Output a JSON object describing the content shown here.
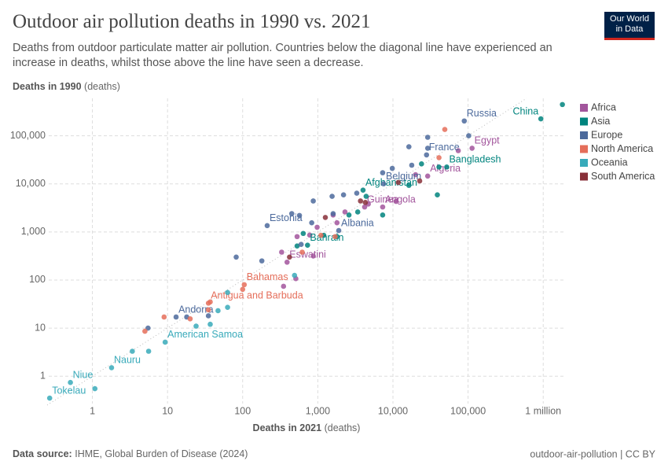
{
  "chart_data": {
    "type": "scatter",
    "title": "Outdoor air pollution deaths in 1990 vs. 2021",
    "subtitle": "Deaths from outdoor particulate matter air pollution. Countries below the diagonal line have experienced an increase in deaths, whilst those above the line have seen a decrease.",
    "logo": [
      "Our World",
      "in Data"
    ],
    "ylabel": {
      "text": "Deaths in 1990",
      "unit": "(deaths)"
    },
    "xlabel": {
      "text": "Deaths in 2021",
      "unit": "(deaths)"
    },
    "source_label": "Data source:",
    "source": "IHME, Global Burden of Disease (2024)",
    "footer_right": "outdoor-air-pollution | CC BY",
    "xscale": "log",
    "yscale": "log",
    "grid": true,
    "legend": "right",
    "xlim": [
      0.25,
      2000000
    ],
    "ylim": [
      0.25,
      600000
    ],
    "xticks": [
      1,
      10,
      100,
      {
        "value": 1000,
        "label": "1,000"
      },
      {
        "value": 10000,
        "label": "10,000"
      },
      {
        "value": 100000,
        "label": "100,000"
      },
      {
        "value": 1000000,
        "label": "1 million"
      }
    ],
    "yticks": [
      1,
      10,
      100,
      {
        "value": 1000,
        "label": "1,000"
      },
      {
        "value": 10000,
        "label": "10,000"
      },
      {
        "value": 100000,
        "label": "100,000"
      }
    ],
    "series": [
      {
        "name": "Africa",
        "color": "#a2559c",
        "x": [
          113000,
          29000,
          7300,
          4200,
          390,
          74000,
          20000,
          11000,
          4700,
          2300,
          1600,
          980,
          780,
          530,
          330,
          510,
          350,
          870,
          1800
        ],
        "y": [
          55000,
          14500,
          3300,
          3300,
          235,
          49000,
          15500,
          4300,
          3800,
          2600,
          2250,
          1250,
          860,
          800,
          380,
          107,
          74,
          316,
          1550
        ],
        "labels": [
          "Egypt",
          "Algeria",
          "Angola",
          "Guinea",
          "Eswatini",
          null,
          null,
          null,
          null,
          null,
          null,
          null,
          null,
          null,
          null,
          null,
          null,
          null,
          null
        ]
      },
      {
        "name": "Asia",
        "color": "#00847e",
        "x": [
          930000,
          52000,
          4000,
          730,
          1800000,
          41000,
          39000,
          16300,
          7300,
          3400,
          2600,
          1800,
          1200,
          640,
          530,
          4400,
          24000
        ],
        "y": [
          225000,
          22400,
          7400,
          530,
          446000,
          22400,
          5900,
          9300,
          2250,
          2600,
          2250,
          800,
          850,
          930,
          510,
          5500,
          26000
        ],
        "labels": [
          "China",
          "Bangladesh",
          "Afghanistan",
          "Bahrain",
          null,
          null,
          null,
          null,
          null,
          null,
          null,
          null,
          null,
          null,
          null,
          null,
          null
        ]
      },
      {
        "name": "Europe",
        "color": "#4c6a9c",
        "x": [
          89000,
          28000,
          7500,
          212,
          1900,
          13,
          102000,
          29000,
          29000,
          16300,
          17800,
          9800,
          7300,
          3300,
          2200,
          1550,
          870,
          1600,
          450,
          570,
          830,
          82,
          180,
          600,
          5.5,
          18,
          35
        ],
        "y": [
          203000,
          40000,
          10000,
          1350,
          1070,
          17,
          100000,
          93000,
          55000,
          59000,
          24400,
          21000,
          17000,
          6400,
          5900,
          5500,
          4400,
          2400,
          2400,
          2200,
          1550,
          300,
          250,
          550,
          10,
          17,
          18
        ],
        "labels": [
          "Russia",
          "France",
          "Belgium",
          "Estonia",
          "Albania",
          "Andorra",
          null,
          null,
          null,
          null,
          null,
          null,
          null,
          null,
          null,
          null,
          null,
          null,
          null,
          null,
          null,
          null,
          null,
          null,
          null,
          null,
          null
        ]
      },
      {
        "name": "North America",
        "color": "#e56e5a",
        "x": [
          105,
          35,
          49000,
          41000,
          1700,
          1100,
          620,
          100,
          37,
          9,
          5,
          20,
          35
        ],
        "y": [
          80,
          33,
          135000,
          35000,
          800,
          850,
          380,
          64,
          35,
          17,
          8.6,
          15.6,
          24
        ],
        "labels": [
          "Bahamas",
          "Antigua and Barbuda",
          null,
          null,
          null,
          null,
          null,
          null,
          null,
          null,
          null,
          null,
          null
        ]
      },
      {
        "name": "Oceania",
        "color": "#38aaba",
        "x": [
          9.3,
          1.8,
          0.51,
          0.27,
          63,
          63,
          47,
          24,
          37,
          5.6,
          3.4,
          1.08,
          490
        ],
        "y": [
          5.1,
          1.5,
          0.74,
          0.35,
          55,
          27,
          23,
          11,
          12,
          3.3,
          3.3,
          0.55,
          125
        ],
        "labels": [
          "American Samoa",
          "Nauru",
          "Niue",
          "Tokelau",
          null,
          null,
          null,
          null,
          null,
          null,
          null,
          null,
          null
        ]
      },
      {
        "name": "South America",
        "color": "#883039",
        "x": [
          11800,
          22700,
          4300,
          3700,
          1260,
          420
        ],
        "y": [
          10700,
          11500,
          4100,
          4400,
          2000,
          300
        ],
        "labels": [
          null,
          null,
          null,
          null,
          null,
          null
        ]
      }
    ]
  }
}
